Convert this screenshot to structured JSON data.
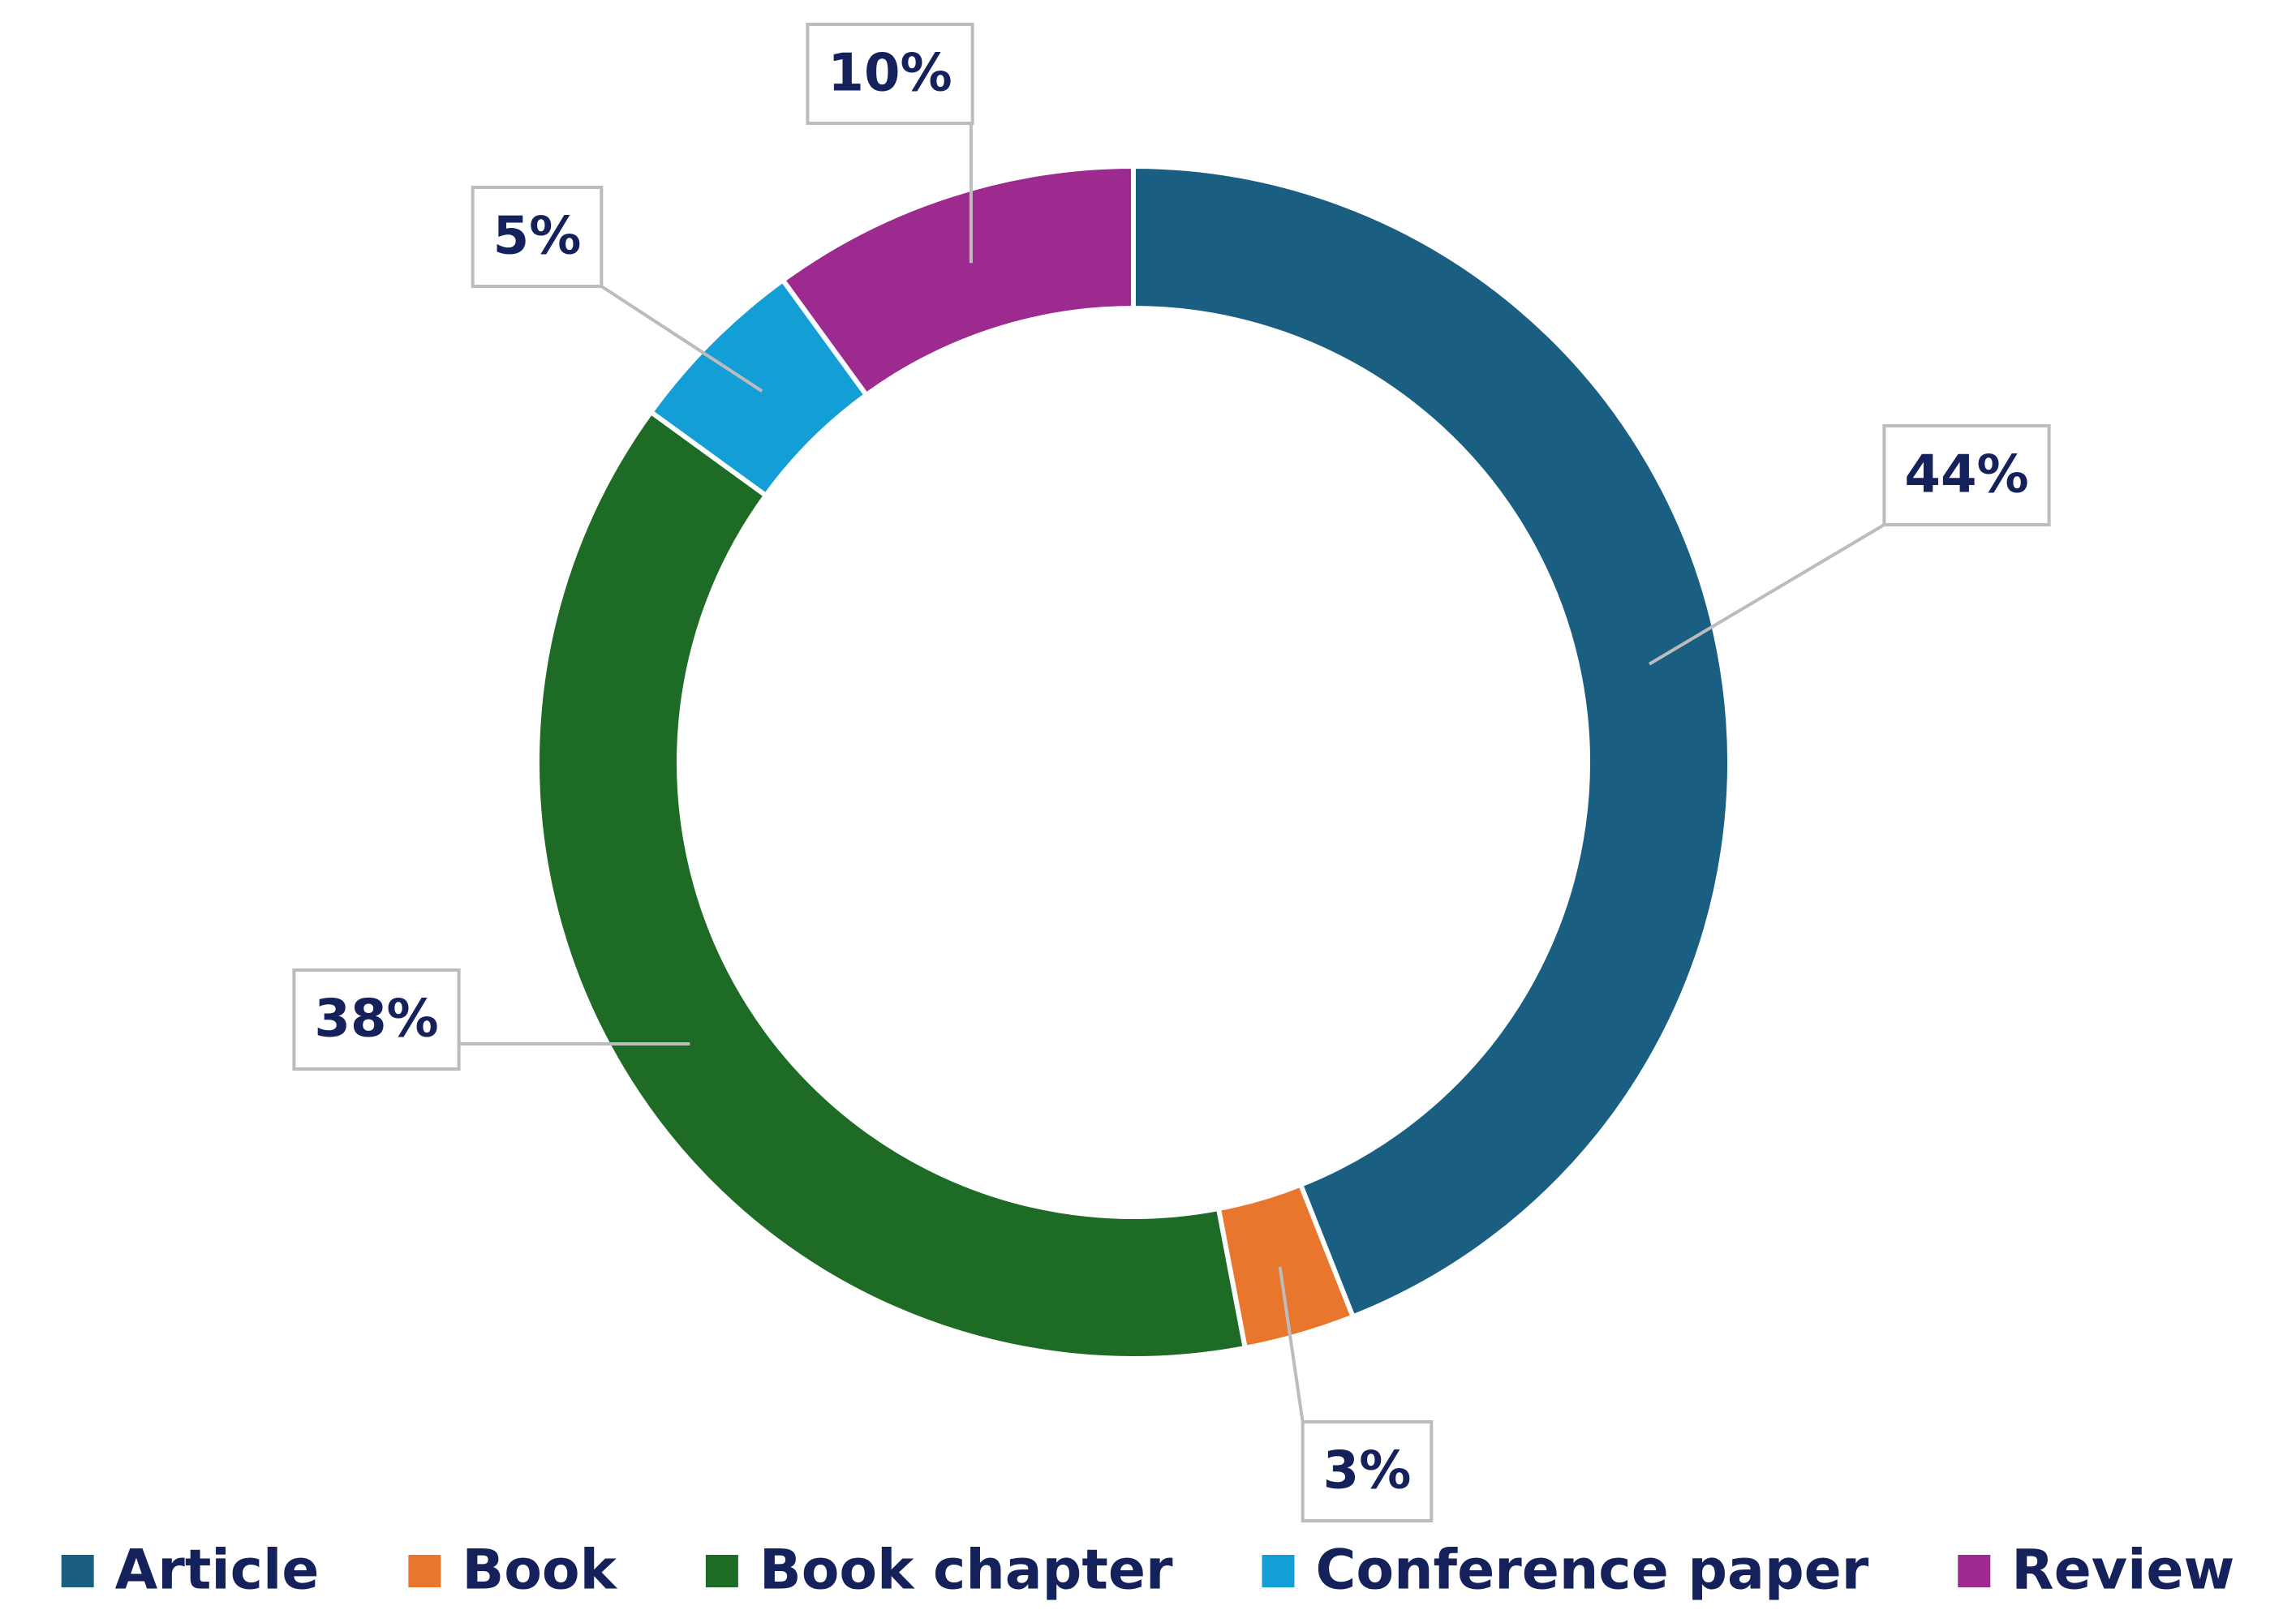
{
  "chart_data": {
    "type": "donut",
    "categories": [
      "Article",
      "Book",
      "Book chapter",
      "Conference paper",
      "Review"
    ],
    "values": [
      44,
      3,
      38,
      5,
      10
    ],
    "value_labels": [
      "44%",
      "3%",
      "38%",
      "5%",
      "10%"
    ],
    "colors": [
      "#1a5f82",
      "#e8762d",
      "#1e6b25",
      "#139fd6",
      "#9c2a8f"
    ],
    "legend": "bottom"
  }
}
